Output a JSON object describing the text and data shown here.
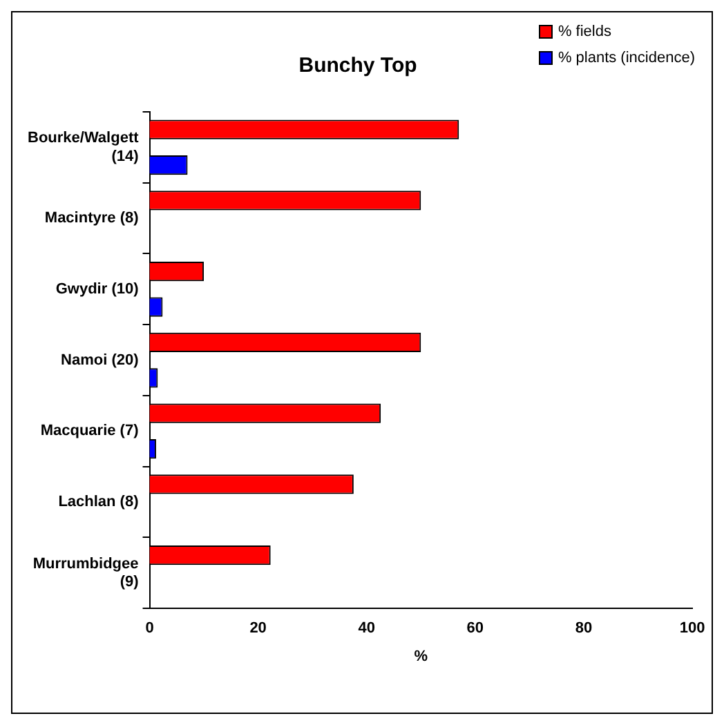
{
  "chart_data": {
    "type": "bar",
    "orientation": "horizontal",
    "title": "Bunchy Top",
    "xlabel": "%",
    "categories": [
      "Bourke/Walgett (14)",
      "Macintyre (8)",
      "Gwydir (10)",
      "Namoi (20)",
      "Macquarie (7)",
      "Lachlan (8)",
      "Murrumbidgee (9)"
    ],
    "series": [
      {
        "name": "% fields",
        "color": "#ff0000",
        "values": [
          57,
          50,
          10,
          50,
          42.6,
          37.6,
          22.3
        ]
      },
      {
        "name": "% plants (incidence)",
        "color": "#0000ff",
        "values": [
          7,
          0,
          2.4,
          1.5,
          1.2,
          0,
          0
        ]
      }
    ],
    "xlim": [
      0,
      100
    ],
    "xticks": [
      0,
      20,
      40,
      60,
      80,
      100
    ],
    "grid": false,
    "legend": "top right"
  }
}
